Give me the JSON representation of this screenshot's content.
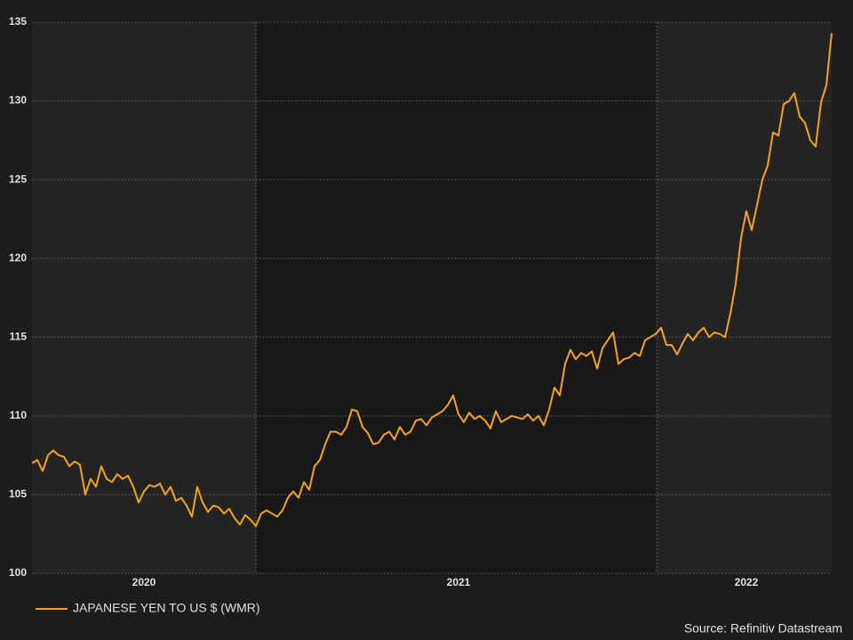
{
  "chart_data": {
    "type": "line",
    "categories": [
      null,
      null,
      null,
      null,
      null,
      null,
      null,
      null,
      null,
      null,
      null,
      null,
      null,
      null,
      null,
      null,
      null,
      null,
      null,
      null,
      null,
      "2020",
      null,
      null,
      null,
      null,
      null,
      null,
      null,
      null,
      null,
      null,
      null,
      null,
      null,
      null,
      null,
      null,
      null,
      null,
      null,
      null,
      null,
      null,
      null,
      null,
      null,
      null,
      null,
      null,
      null,
      null,
      null,
      null,
      null,
      null,
      null,
      null,
      null,
      null,
      null,
      null,
      null,
      null,
      null,
      null,
      null,
      null,
      null,
      null,
      null,
      null,
      null,
      null,
      null,
      null,
      null,
      null,
      null,
      null,
      "2021",
      null,
      null,
      null,
      null,
      null,
      null,
      null,
      null,
      null,
      null,
      null,
      null,
      null,
      null,
      null,
      null,
      null,
      null,
      null,
      null,
      null,
      null,
      null,
      null,
      null,
      null,
      null,
      null,
      null,
      null,
      null,
      null,
      null,
      null,
      null,
      null,
      null,
      null,
      null,
      null,
      null,
      null,
      null,
      null,
      null,
      null,
      null,
      null,
      null,
      null,
      null,
      null,
      null,
      "2022",
      null,
      null,
      null,
      null,
      null,
      null,
      null,
      null,
      null,
      null,
      null,
      null,
      null,
      null,
      null,
      null
    ],
    "series": [
      {
        "name": "JAPANESE YEN TO US $ (WMR)",
        "color": "#f5a31a",
        "values": [
          107.0,
          107.2,
          106.5,
          107.5,
          107.8,
          107.5,
          107.4,
          106.8,
          107.1,
          106.9,
          105.0,
          106.0,
          105.5,
          106.8,
          106.0,
          105.8,
          106.3,
          106.0,
          106.2,
          105.5,
          104.5,
          105.2,
          105.6,
          105.5,
          105.7,
          105.0,
          105.5,
          104.6,
          104.8,
          104.3,
          103.6,
          105.5,
          104.5,
          103.9,
          104.3,
          104.2,
          103.8,
          104.1,
          103.5,
          103.1,
          103.7,
          103.4,
          103.0,
          103.8,
          104.0,
          103.8,
          103.6,
          104.0,
          104.8,
          105.2,
          104.8,
          105.8,
          105.3,
          106.8,
          107.2,
          108.2,
          109.0,
          109.0,
          108.8,
          109.3,
          110.4,
          110.3,
          109.3,
          108.9,
          108.2,
          108.3,
          108.8,
          109.0,
          108.5,
          109.3,
          108.8,
          109.0,
          109.7,
          109.8,
          109.4,
          109.9,
          110.1,
          110.3,
          110.7,
          111.3,
          110.1,
          109.6,
          110.2,
          109.8,
          110.0,
          109.7,
          109.2,
          110.3,
          109.6,
          109.8,
          110.0,
          109.9,
          109.8,
          110.1,
          109.7,
          110.0,
          109.4,
          110.4,
          111.8,
          111.3,
          113.3,
          114.2,
          113.6,
          114.0,
          113.8,
          114.1,
          113.0,
          114.3,
          114.8,
          115.3,
          113.3,
          113.6,
          113.7,
          114.0,
          113.8,
          114.8,
          115.0,
          115.2,
          115.6,
          114.5,
          114.5,
          113.9,
          114.6,
          115.2,
          114.8,
          115.3,
          115.6,
          115.0,
          115.3,
          115.2,
          115.0,
          116.5,
          118.4,
          121.3,
          123.0,
          121.8,
          123.4,
          125.0,
          125.9,
          128.0,
          127.8,
          129.8,
          130.0,
          130.5,
          129.0,
          128.6,
          127.5,
          127.1,
          129.9,
          131.0,
          134.3
        ]
      }
    ],
    "ylim": [
      100,
      135
    ],
    "yticks": [
      100,
      105,
      110,
      115,
      120,
      125,
      130,
      135
    ],
    "grid": true,
    "legend": "bottom-left",
    "source": "Source: Refinitiv Datastream"
  }
}
